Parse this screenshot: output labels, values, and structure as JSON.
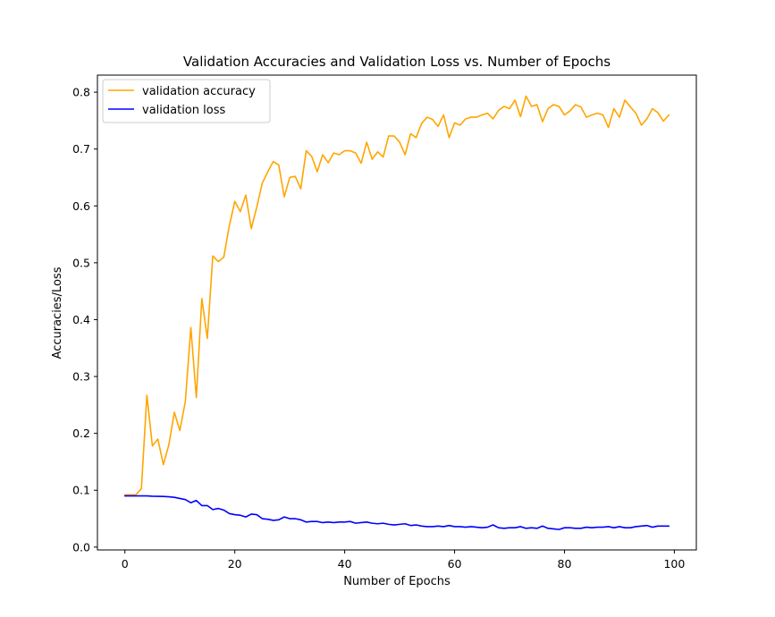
{
  "chart_data": {
    "type": "line",
    "title": "Validation Accuracies and Validation Loss vs. Number of Epochs",
    "xlabel": "Number of Epochs",
    "ylabel": "Accuracies/Loss",
    "xlim": [
      -5,
      104
    ],
    "ylim": [
      -0.005,
      0.83
    ],
    "xticks": [
      0,
      20,
      40,
      60,
      80,
      100
    ],
    "yticks": [
      0.0,
      0.1,
      0.2,
      0.3,
      0.4,
      0.5,
      0.6,
      0.7,
      0.8
    ],
    "xtick_labels": [
      "0",
      "20",
      "40",
      "60",
      "80",
      "100"
    ],
    "ytick_labels": [
      "0.0",
      "0.1",
      "0.2",
      "0.3",
      "0.4",
      "0.5",
      "0.6",
      "0.7",
      "0.8"
    ],
    "grid": false,
    "legend": "top-left",
    "x": [
      0,
      1,
      2,
      3,
      4,
      5,
      6,
      7,
      8,
      9,
      10,
      11,
      12,
      13,
      14,
      15,
      16,
      17,
      18,
      19,
      20,
      21,
      22,
      23,
      24,
      25,
      26,
      27,
      28,
      29,
      30,
      31,
      32,
      33,
      34,
      35,
      36,
      37,
      38,
      39,
      40,
      41,
      42,
      43,
      44,
      45,
      46,
      47,
      48,
      49,
      50,
      51,
      52,
      53,
      54,
      55,
      56,
      57,
      58,
      59,
      60,
      61,
      62,
      63,
      64,
      65,
      66,
      67,
      68,
      69,
      70,
      71,
      72,
      73,
      74,
      75,
      76,
      77,
      78,
      79,
      80,
      81,
      82,
      83,
      84,
      85,
      86,
      87,
      88,
      89,
      90,
      91,
      92,
      93,
      94,
      95,
      96,
      97,
      98,
      99
    ],
    "series": [
      {
        "name": "validation accuracy",
        "color": "#ffa500",
        "values": [
          0.092,
          0.092,
          0.092,
          0.103,
          0.267,
          0.178,
          0.19,
          0.145,
          0.18,
          0.237,
          0.205,
          0.256,
          0.386,
          0.263,
          0.437,
          0.367,
          0.512,
          0.502,
          0.51,
          0.565,
          0.608,
          0.59,
          0.619,
          0.56,
          0.598,
          0.64,
          0.66,
          0.678,
          0.672,
          0.616,
          0.65,
          0.652,
          0.63,
          0.697,
          0.687,
          0.66,
          0.69,
          0.676,
          0.693,
          0.69,
          0.697,
          0.697,
          0.693,
          0.675,
          0.712,
          0.682,
          0.695,
          0.686,
          0.723,
          0.723,
          0.712,
          0.69,
          0.727,
          0.72,
          0.745,
          0.756,
          0.752,
          0.74,
          0.76,
          0.72,
          0.746,
          0.742,
          0.753,
          0.756,
          0.756,
          0.76,
          0.763,
          0.753,
          0.768,
          0.775,
          0.771,
          0.786,
          0.757,
          0.793,
          0.775,
          0.778,
          0.748,
          0.771,
          0.778,
          0.775,
          0.76,
          0.767,
          0.778,
          0.774,
          0.756,
          0.76,
          0.763,
          0.76,
          0.738,
          0.771,
          0.756,
          0.786,
          0.774,
          0.763,
          0.742,
          0.753,
          0.771,
          0.764,
          0.749,
          0.76
        ]
      },
      {
        "name": "validation loss",
        "color": "#0000ff",
        "values": [
          0.09,
          0.09,
          0.09,
          0.09,
          0.09,
          0.0895,
          0.0893,
          0.089,
          0.0885,
          0.0875,
          0.0855,
          0.0835,
          0.078,
          0.082,
          0.073,
          0.073,
          0.066,
          0.068,
          0.065,
          0.059,
          0.057,
          0.056,
          0.053,
          0.058,
          0.057,
          0.05,
          0.049,
          0.047,
          0.048,
          0.053,
          0.05,
          0.05,
          0.048,
          0.044,
          0.045,
          0.045,
          0.043,
          0.044,
          0.043,
          0.044,
          0.044,
          0.045,
          0.042,
          0.043,
          0.044,
          0.042,
          0.041,
          0.042,
          0.04,
          0.039,
          0.04,
          0.041,
          0.038,
          0.039,
          0.037,
          0.036,
          0.036,
          0.037,
          0.036,
          0.038,
          0.036,
          0.036,
          0.035,
          0.036,
          0.035,
          0.034,
          0.035,
          0.039,
          0.034,
          0.033,
          0.034,
          0.034,
          0.036,
          0.033,
          0.034,
          0.033,
          0.037,
          0.033,
          0.032,
          0.031,
          0.034,
          0.034,
          0.033,
          0.033,
          0.035,
          0.034,
          0.035,
          0.035,
          0.036,
          0.034,
          0.036,
          0.034,
          0.034,
          0.036,
          0.037,
          0.038,
          0.035,
          0.037,
          0.037,
          0.037
        ]
      }
    ]
  }
}
